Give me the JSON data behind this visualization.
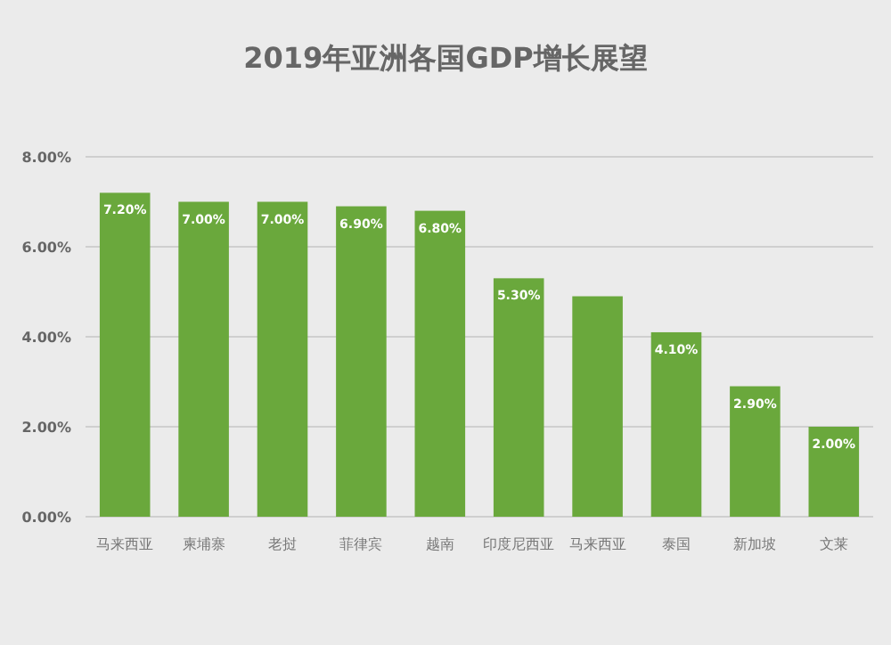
{
  "chart_data": {
    "type": "bar",
    "title": "2019年亚洲各国GDP增长展望",
    "categories": [
      "马来西亚",
      "柬埔寨",
      "老挝",
      "菲律宾",
      "越南",
      "印度尼西亚",
      "马来西亚",
      "泰国",
      "新加坡",
      "文莱"
    ],
    "values": [
      7.2,
      7.0,
      7.0,
      6.9,
      6.8,
      5.3,
      4.9,
      4.1,
      2.9,
      2.0
    ],
    "value_labels": [
      "7.20%",
      "7.00%",
      "7.00%",
      "6.90%",
      "6.80%",
      "5.30%",
      null,
      "4.10%",
      "2.90%",
      "2.00%"
    ],
    "color": "#6aa83c",
    "ylim": [
      0,
      8
    ],
    "yticks": [
      {
        "value": 0,
        "label": "0.00%"
      },
      {
        "value": 2,
        "label": "2.00%"
      },
      {
        "value": 4,
        "label": "4.00%"
      },
      {
        "value": 6,
        "label": "6.00%"
      },
      {
        "value": 8,
        "label": "8.00%"
      }
    ],
    "grid": "y"
  }
}
